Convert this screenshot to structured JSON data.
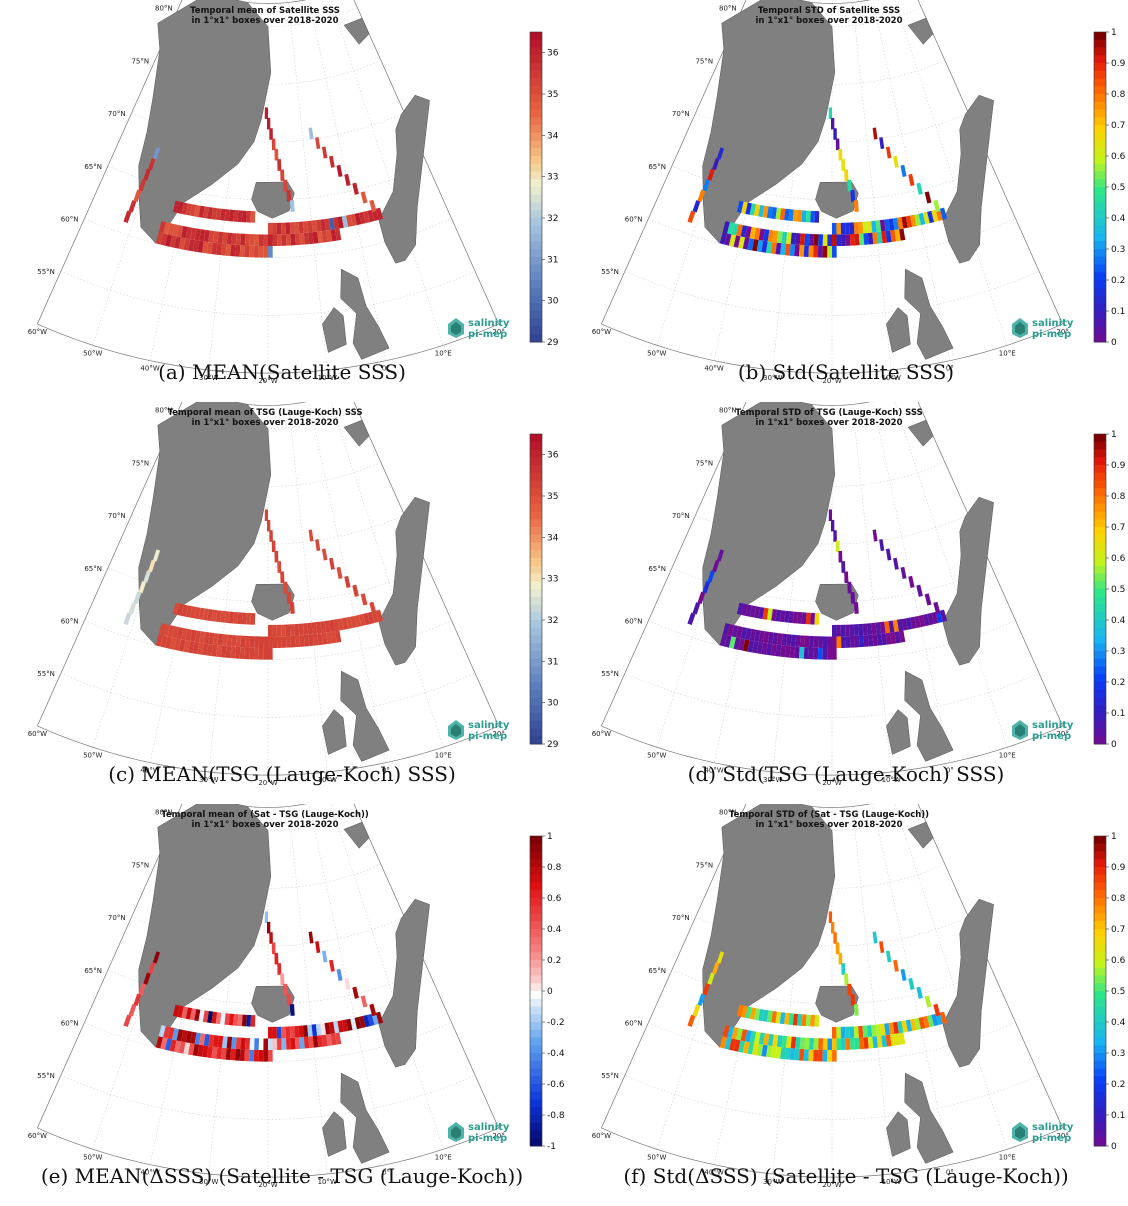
{
  "panels": [
    {
      "id": "a",
      "title1": "Temporal mean of Satellite SSS",
      "title2": "in 1°x1° boxes over 2018-2020",
      "caption": "(a) MEAN(Satellite SSS)",
      "colorbar": {
        "ticks": [
          "36",
          "35",
          "34",
          "33",
          "32",
          "31",
          "30",
          "29"
        ],
        "vmin": 29,
        "vmax": 36.5,
        "cmap": "redblue"
      },
      "fill": "mixred"
    },
    {
      "id": "b",
      "title1": "Temporal STD of Satellite SSS",
      "title2": "in 1°x1° boxes over 2018-2020",
      "caption": "(b) Std(Satellite SSS)",
      "colorbar": {
        "ticks": [
          "1",
          "0.9",
          "0.8",
          "0.7",
          "0.6",
          "0.5",
          "0.4",
          "0.3",
          "0.2",
          "0.1",
          "0"
        ],
        "vmin": 0,
        "vmax": 1,
        "cmap": "jet"
      },
      "fill": "jetmix"
    },
    {
      "id": "c",
      "title1": "Temporal mean of TSG (Lauge-Koch) SSS",
      "title2": "in 1°x1° boxes over 2018-2020",
      "caption": "(c) MEAN(TSG (Lauge-Koch) SSS)",
      "colorbar": {
        "ticks": [
          "36",
          "35",
          "34",
          "33",
          "32",
          "31",
          "30",
          "29"
        ],
        "vmin": 29,
        "vmax": 36.5,
        "cmap": "redblue"
      },
      "fill": "solidred"
    },
    {
      "id": "d",
      "title1": "Temporal STD of TSG (Lauge-Koch) SSS",
      "title2": "in 1°x1° boxes over 2018-2020",
      "caption": "(d) Std(TSG (Lauge-Koch) SSS)",
      "colorbar": {
        "ticks": [
          "1",
          "0.9",
          "0.8",
          "0.7",
          "0.6",
          "0.5",
          "0.4",
          "0.3",
          "0.2",
          "0.1",
          "0"
        ],
        "vmin": 0,
        "vmax": 1,
        "cmap": "jet"
      },
      "fill": "purple"
    },
    {
      "id": "e",
      "title1": "Temporal mean of (Sat - TSG (Lauge-Koch))",
      "title2": "in 1°x1° boxes over 2018-2020",
      "caption": "(e) MEAN(ΔSSS) (Satellite - TSG (Lauge-Koch))",
      "colorbar": {
        "ticks": [
          "1",
          "0.8",
          "0.6",
          "0.4",
          "0.2",
          "0",
          "-0.2",
          "-0.4",
          "-0.6",
          "-0.8",
          "-1"
        ],
        "vmin": -1,
        "vmax": 1,
        "cmap": "diverging"
      },
      "fill": "diverge"
    },
    {
      "id": "f",
      "title1": "Temporal STD of (Sat - TSG (Lauge-Koch))",
      "title2": "in 1°x1° boxes over 2018-2020",
      "caption": "(f) Std(ΔSSS) (Satellite - TSG (Lauge-Koch))",
      "colorbar": {
        "ticks": [
          "1",
          "0.9",
          "0.8",
          "0.7",
          "0.6",
          "0.5",
          "0.4",
          "0.3",
          "0.2",
          "0.1",
          "0"
        ],
        "vmin": 0,
        "vmax": 1,
        "cmap": "jet"
      },
      "fill": "jetmix2"
    }
  ],
  "lat_labels": [
    "80°N",
    "75°N",
    "70°N",
    "65°N",
    "60°N",
    "55°N"
  ],
  "lon_labels": [
    "60°W",
    "50°W",
    "40°W",
    "30°W",
    "20°W",
    "10°W",
    "0°",
    "10°E",
    "20°"
  ],
  "logo": {
    "line1": "salinity",
    "line2": "pi-mep"
  },
  "colors": {
    "land": "#808080",
    "grid": "#c8c8c8"
  }
}
